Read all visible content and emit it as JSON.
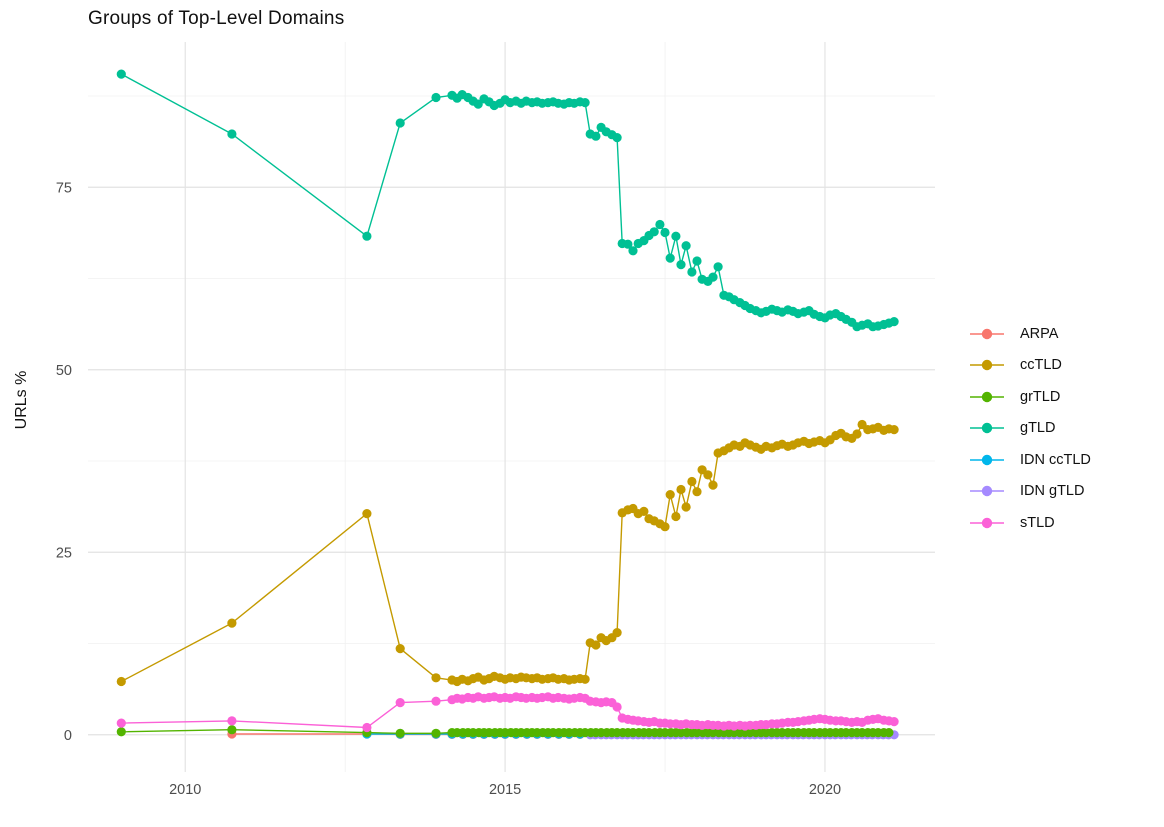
{
  "chart_data": {
    "type": "line",
    "title": "Groups of Top-Level Domains",
    "xlabel": "",
    "ylabel": "URLs %",
    "grid": true,
    "legend_position": "right",
    "xlim": [
      2008.48,
      2021.72
    ],
    "ylim": [
      -5.1,
      94.9
    ],
    "x_ticks": [
      {
        "label": "2010",
        "value": 2010
      },
      {
        "label": "2015",
        "value": 2015
      },
      {
        "label": "2020",
        "value": 2020
      }
    ],
    "x_minor_ticks": [
      2012.5,
      2017.5
    ],
    "y_ticks": [
      {
        "label": "0",
        "value": 0
      },
      {
        "label": "25",
        "value": 25
      },
      {
        "label": "50",
        "value": 50
      },
      {
        "label": "75",
        "value": 75
      }
    ],
    "y_minor_ticks": [
      12.5,
      37.5,
      62.5,
      87.5
    ],
    "draw_order": [
      0,
      4,
      5,
      2,
      3,
      1,
      6
    ],
    "series": [
      {
        "name": "ARPA",
        "color": "#F8766D",
        "points": [
          [
            2010.73,
            0.1
          ],
          [
            2012.84,
            0.1
          ],
          [
            2013.36,
            0.05
          ],
          [
            2013.92,
            0.05
          ]
        ],
        "fill": {
          "from": 2014.17,
          "to": 2021.08,
          "step": 0.1667,
          "value": 0.05
        }
      },
      {
        "name": "ccTLD",
        "color": "#C49A00",
        "points": [
          [
            2009,
            7.3
          ],
          [
            2010.73,
            15.3
          ],
          [
            2012.84,
            30.3
          ],
          [
            2013.36,
            11.8
          ],
          [
            2013.92,
            7.8
          ],
          [
            2014.17,
            7.5
          ],
          [
            2014.25,
            7.3
          ],
          [
            2014.33,
            7.6
          ],
          [
            2014.42,
            7.4
          ],
          [
            2014.5,
            7.7
          ],
          [
            2014.58,
            7.9
          ],
          [
            2014.67,
            7.5
          ],
          [
            2014.75,
            7.7
          ],
          [
            2014.83,
            8.0
          ],
          [
            2014.92,
            7.8
          ],
          [
            2015,
            7.6
          ],
          [
            2015.08,
            7.8
          ],
          [
            2015.17,
            7.7
          ],
          [
            2015.25,
            7.9
          ],
          [
            2015.33,
            7.8
          ],
          [
            2015.42,
            7.7
          ],
          [
            2015.5,
            7.8
          ],
          [
            2015.58,
            7.6
          ],
          [
            2015.67,
            7.7
          ],
          [
            2015.75,
            7.8
          ],
          [
            2015.83,
            7.6
          ],
          [
            2015.92,
            7.7
          ],
          [
            2016,
            7.5
          ],
          [
            2016.08,
            7.6
          ],
          [
            2016.17,
            7.7
          ],
          [
            2016.25,
            7.6
          ],
          [
            2016.33,
            12.6
          ],
          [
            2016.42,
            12.3
          ],
          [
            2016.5,
            13.3
          ],
          [
            2016.58,
            12.9
          ],
          [
            2016.67,
            13.3
          ],
          [
            2016.75,
            14.0
          ],
          [
            2016.83,
            30.4
          ],
          [
            2016.92,
            30.8
          ],
          [
            2017,
            31.0
          ],
          [
            2017.08,
            30.3
          ],
          [
            2017.17,
            30.6
          ],
          [
            2017.25,
            29.6
          ],
          [
            2017.33,
            29.3
          ],
          [
            2017.42,
            28.9
          ],
          [
            2017.5,
            28.5
          ],
          [
            2017.58,
            32.9
          ],
          [
            2017.67,
            29.9
          ],
          [
            2017.75,
            33.6
          ],
          [
            2017.83,
            31.2
          ],
          [
            2017.92,
            34.7
          ],
          [
            2018,
            33.3
          ],
          [
            2018.08,
            36.3
          ],
          [
            2018.17,
            35.6
          ],
          [
            2018.25,
            34.2
          ],
          [
            2018.33,
            38.6
          ],
          [
            2018.42,
            38.9
          ],
          [
            2018.5,
            39.3
          ],
          [
            2018.58,
            39.7
          ],
          [
            2018.67,
            39.5
          ],
          [
            2018.75,
            40.0
          ],
          [
            2018.83,
            39.7
          ],
          [
            2018.92,
            39.4
          ],
          [
            2019,
            39.1
          ],
          [
            2019.08,
            39.5
          ],
          [
            2019.17,
            39.3
          ],
          [
            2019.25,
            39.6
          ],
          [
            2019.33,
            39.8
          ],
          [
            2019.42,
            39.5
          ],
          [
            2019.5,
            39.7
          ],
          [
            2019.58,
            40.0
          ],
          [
            2019.67,
            40.2
          ],
          [
            2019.75,
            39.9
          ],
          [
            2019.83,
            40.1
          ],
          [
            2019.92,
            40.3
          ],
          [
            2020,
            40.0
          ],
          [
            2020.08,
            40.4
          ],
          [
            2020.17,
            41.0
          ],
          [
            2020.25,
            41.3
          ],
          [
            2020.33,
            40.8
          ],
          [
            2020.42,
            40.6
          ],
          [
            2020.5,
            41.2
          ],
          [
            2020.58,
            42.5
          ],
          [
            2020.67,
            41.8
          ],
          [
            2020.75,
            41.9
          ],
          [
            2020.83,
            42.1
          ],
          [
            2020.92,
            41.7
          ],
          [
            2021,
            41.9
          ],
          [
            2021.08,
            41.8
          ]
        ]
      },
      {
        "name": "grTLD",
        "color": "#53B400",
        "points": [
          [
            2009,
            0.4
          ],
          [
            2010.73,
            0.7
          ],
          [
            2012.84,
            0.3
          ],
          [
            2013.36,
            0.2
          ],
          [
            2013.92,
            0.2
          ]
        ],
        "fill": {
          "from": 2014.17,
          "to": 2021.08,
          "step": 0.0833,
          "value": 0.3
        }
      },
      {
        "name": "gTLD",
        "color": "#00C094",
        "points": [
          [
            2009,
            90.5
          ],
          [
            2010.73,
            82.3
          ],
          [
            2012.84,
            68.3
          ],
          [
            2013.36,
            83.8
          ],
          [
            2013.92,
            87.3
          ],
          [
            2014.17,
            87.6
          ],
          [
            2014.25,
            87.2
          ],
          [
            2014.33,
            87.7
          ],
          [
            2014.42,
            87.3
          ],
          [
            2014.5,
            86.8
          ],
          [
            2014.58,
            86.4
          ],
          [
            2014.67,
            87.1
          ],
          [
            2014.75,
            86.7
          ],
          [
            2014.83,
            86.2
          ],
          [
            2014.92,
            86.5
          ],
          [
            2015,
            87.0
          ],
          [
            2015.08,
            86.6
          ],
          [
            2015.17,
            86.8
          ],
          [
            2015.25,
            86.5
          ],
          [
            2015.33,
            86.8
          ],
          [
            2015.42,
            86.6
          ],
          [
            2015.5,
            86.7
          ],
          [
            2015.58,
            86.5
          ],
          [
            2015.67,
            86.6
          ],
          [
            2015.75,
            86.7
          ],
          [
            2015.83,
            86.5
          ],
          [
            2015.92,
            86.4
          ],
          [
            2016,
            86.6
          ],
          [
            2016.08,
            86.5
          ],
          [
            2016.17,
            86.7
          ],
          [
            2016.25,
            86.6
          ],
          [
            2016.33,
            82.3
          ],
          [
            2016.42,
            82.0
          ],
          [
            2016.5,
            83.2
          ],
          [
            2016.58,
            82.6
          ],
          [
            2016.67,
            82.2
          ],
          [
            2016.75,
            81.8
          ],
          [
            2016.83,
            67.3
          ],
          [
            2016.92,
            67.2
          ],
          [
            2017,
            66.3
          ],
          [
            2017.08,
            67.3
          ],
          [
            2017.17,
            67.7
          ],
          [
            2017.25,
            68.4
          ],
          [
            2017.33,
            68.9
          ],
          [
            2017.42,
            69.9
          ],
          [
            2017.5,
            68.8
          ],
          [
            2017.58,
            65.3
          ],
          [
            2017.67,
            68.3
          ],
          [
            2017.75,
            64.4
          ],
          [
            2017.83,
            67.0
          ],
          [
            2017.92,
            63.4
          ],
          [
            2018,
            64.9
          ],
          [
            2018.08,
            62.4
          ],
          [
            2018.17,
            62.1
          ],
          [
            2018.25,
            62.7
          ],
          [
            2018.33,
            64.1
          ],
          [
            2018.42,
            60.2
          ],
          [
            2018.5,
            60.0
          ],
          [
            2018.58,
            59.6
          ],
          [
            2018.67,
            59.2
          ],
          [
            2018.75,
            58.8
          ],
          [
            2018.83,
            58.4
          ],
          [
            2018.92,
            58.1
          ],
          [
            2019,
            57.8
          ],
          [
            2019.08,
            58.0
          ],
          [
            2019.17,
            58.3
          ],
          [
            2019.25,
            58.1
          ],
          [
            2019.33,
            57.9
          ],
          [
            2019.42,
            58.2
          ],
          [
            2019.5,
            58.0
          ],
          [
            2019.58,
            57.7
          ],
          [
            2019.67,
            57.9
          ],
          [
            2019.75,
            58.1
          ],
          [
            2019.83,
            57.6
          ],
          [
            2019.92,
            57.3
          ],
          [
            2020,
            57.1
          ],
          [
            2020.08,
            57.5
          ],
          [
            2020.17,
            57.7
          ],
          [
            2020.25,
            57.3
          ],
          [
            2020.33,
            56.9
          ],
          [
            2020.42,
            56.5
          ],
          [
            2020.5,
            55.9
          ],
          [
            2020.58,
            56.1
          ],
          [
            2020.67,
            56.3
          ],
          [
            2020.75,
            55.9
          ],
          [
            2020.83,
            56.0
          ],
          [
            2020.92,
            56.2
          ],
          [
            2021,
            56.4
          ],
          [
            2021.08,
            56.6
          ]
        ]
      },
      {
        "name": "IDN ccTLD",
        "color": "#00B6EB",
        "points": [
          [
            2012.84,
            0.1
          ],
          [
            2013.36,
            0.1
          ],
          [
            2013.92,
            0.1
          ]
        ],
        "fill": {
          "from": 2014.17,
          "to": 2021.08,
          "step": 0.1667,
          "value": 0.1
        }
      },
      {
        "name": "IDN gTLD",
        "color": "#A58AFF",
        "points": [],
        "fill": {
          "from": 2016.33,
          "to": 2021.08,
          "step": 0.0833,
          "value": 0.0
        }
      },
      {
        "name": "sTLD",
        "color": "#FB61D7",
        "points": [
          [
            2009,
            1.6
          ],
          [
            2010.73,
            1.9
          ],
          [
            2012.84,
            1.0
          ],
          [
            2013.36,
            4.4
          ],
          [
            2013.92,
            4.6
          ],
          [
            2014.17,
            4.8
          ],
          [
            2014.25,
            5.0
          ],
          [
            2014.33,
            4.9
          ],
          [
            2014.42,
            5.1
          ],
          [
            2014.5,
            5.0
          ],
          [
            2014.58,
            5.2
          ],
          [
            2014.67,
            5.0
          ],
          [
            2014.75,
            5.1
          ],
          [
            2014.83,
            5.2
          ],
          [
            2014.92,
            5.0
          ],
          [
            2015,
            5.1
          ],
          [
            2015.08,
            5.0
          ],
          [
            2015.17,
            5.2
          ],
          [
            2015.25,
            5.1
          ],
          [
            2015.33,
            5.0
          ],
          [
            2015.42,
            5.1
          ],
          [
            2015.5,
            5.0
          ],
          [
            2015.58,
            5.1
          ],
          [
            2015.67,
            5.2
          ],
          [
            2015.75,
            5.0
          ],
          [
            2015.83,
            5.1
          ],
          [
            2015.92,
            5.0
          ],
          [
            2016,
            4.9
          ],
          [
            2016.08,
            5.0
          ],
          [
            2016.17,
            5.1
          ],
          [
            2016.25,
            5.0
          ],
          [
            2016.33,
            4.6
          ],
          [
            2016.42,
            4.5
          ],
          [
            2016.5,
            4.4
          ],
          [
            2016.58,
            4.5
          ],
          [
            2016.67,
            4.4
          ],
          [
            2016.75,
            3.8
          ],
          [
            2016.83,
            2.3
          ],
          [
            2016.92,
            2.1
          ],
          [
            2017,
            2.0
          ],
          [
            2017.08,
            1.9
          ],
          [
            2017.17,
            1.8
          ],
          [
            2017.25,
            1.7
          ],
          [
            2017.33,
            1.8
          ],
          [
            2017.42,
            1.6
          ],
          [
            2017.5,
            1.6
          ],
          [
            2017.58,
            1.5
          ],
          [
            2017.67,
            1.5
          ],
          [
            2017.75,
            1.4
          ],
          [
            2017.83,
            1.5
          ],
          [
            2017.92,
            1.4
          ],
          [
            2018,
            1.4
          ],
          [
            2018.08,
            1.3
          ],
          [
            2018.17,
            1.4
          ],
          [
            2018.25,
            1.3
          ],
          [
            2018.33,
            1.3
          ],
          [
            2018.42,
            1.2
          ],
          [
            2018.5,
            1.3
          ],
          [
            2018.58,
            1.2
          ],
          [
            2018.67,
            1.3
          ],
          [
            2018.75,
            1.2
          ],
          [
            2018.83,
            1.3
          ],
          [
            2018.92,
            1.3
          ],
          [
            2019,
            1.4
          ],
          [
            2019.08,
            1.4
          ],
          [
            2019.17,
            1.5
          ],
          [
            2019.25,
            1.5
          ],
          [
            2019.33,
            1.6
          ],
          [
            2019.42,
            1.7
          ],
          [
            2019.5,
            1.7
          ],
          [
            2019.58,
            1.8
          ],
          [
            2019.67,
            1.9
          ],
          [
            2019.75,
            2.0
          ],
          [
            2019.83,
            2.1
          ],
          [
            2019.92,
            2.2
          ],
          [
            2020,
            2.1
          ],
          [
            2020.08,
            2.0
          ],
          [
            2020.17,
            1.9
          ],
          [
            2020.25,
            1.9
          ],
          [
            2020.33,
            1.8
          ],
          [
            2020.42,
            1.7
          ],
          [
            2020.5,
            1.8
          ],
          [
            2020.58,
            1.7
          ],
          [
            2020.67,
            2.0
          ],
          [
            2020.75,
            2.1
          ],
          [
            2020.83,
            2.2
          ],
          [
            2020.92,
            2.0
          ],
          [
            2021,
            1.9
          ],
          [
            2021.08,
            1.8
          ]
        ]
      }
    ],
    "style": {
      "grid_major_color": "#e3e3e3",
      "grid_minor_color": "#f0f0f0",
      "tick_label_color": "#4d4d4d",
      "point_radius": 4.6,
      "line_width": 1.4
    }
  }
}
